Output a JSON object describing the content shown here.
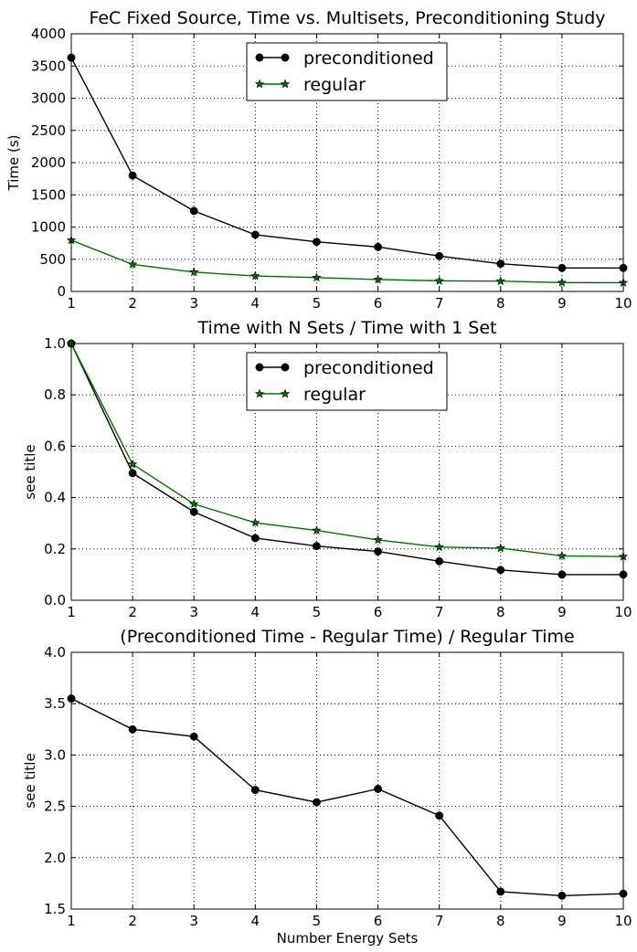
{
  "chart_data": [
    {
      "type": "line",
      "title": "FeC Fixed Source, Time vs. Multisets, Preconditioning Study",
      "xlabel": "",
      "ylabel": "Time (s)",
      "xlim": [
        1,
        10
      ],
      "ylim": [
        0,
        4000
      ],
      "x_ticks": [
        1,
        2,
        3,
        4,
        5,
        6,
        7,
        8,
        9,
        10
      ],
      "y_ticks": [
        "0",
        "500",
        "1000",
        "1500",
        "2000",
        "2500",
        "3000",
        "3500",
        "4000"
      ],
      "y_tick_values": [
        0,
        500,
        1000,
        1500,
        2000,
        2500,
        3000,
        3500,
        4000
      ],
      "grid": true,
      "legend": {
        "placement": "top-center"
      },
      "x": [
        1,
        2,
        3,
        4,
        5,
        6,
        7,
        8,
        9,
        10
      ],
      "series": [
        {
          "name": "preconditioned",
          "color": "#000000",
          "marker": "circle",
          "values": [
            3630,
            1800,
            1250,
            880,
            770,
            690,
            550,
            430,
            365,
            365
          ]
        },
        {
          "name": "regular",
          "color": "#007000",
          "marker": "star",
          "values": [
            795,
            420,
            300,
            240,
            215,
            185,
            165,
            160,
            137,
            135
          ]
        }
      ]
    },
    {
      "type": "line",
      "title": "Time with N Sets / Time with 1 Set",
      "xlabel": "",
      "ylabel": "see title",
      "xlim": [
        1,
        10
      ],
      "ylim": [
        0,
        1
      ],
      "x_ticks": [
        1,
        2,
        3,
        4,
        5,
        6,
        7,
        8,
        9,
        10
      ],
      "y_ticks": [
        "0.0",
        "0.2",
        "0.4",
        "0.6",
        "0.8",
        "1.0"
      ],
      "y_tick_values": [
        0,
        0.2,
        0.4,
        0.6,
        0.8,
        1.0
      ],
      "grid": true,
      "legend": {
        "placement": "top-center"
      },
      "x": [
        1,
        2,
        3,
        4,
        5,
        6,
        7,
        8,
        9,
        10
      ],
      "series": [
        {
          "name": "preconditioned",
          "color": "#000000",
          "marker": "circle",
          "values": [
            1.0,
            0.495,
            0.344,
            0.242,
            0.211,
            0.19,
            0.152,
            0.118,
            0.1,
            0.1
          ]
        },
        {
          "name": "regular",
          "color": "#007000",
          "marker": "star",
          "values": [
            1.0,
            0.53,
            0.375,
            0.302,
            0.272,
            0.235,
            0.207,
            0.203,
            0.173,
            0.17
          ]
        }
      ]
    },
    {
      "type": "line",
      "title": "(Preconditioned Time - Regular Time) / Regular Time",
      "xlabel": "Number Energy Sets",
      "ylabel": "see title",
      "xlim": [
        1,
        10
      ],
      "ylim": [
        1.5,
        4.0
      ],
      "x_ticks": [
        1,
        2,
        3,
        4,
        5,
        6,
        7,
        8,
        9,
        10
      ],
      "y_ticks": [
        "1.5",
        "2.0",
        "2.5",
        "3.0",
        "3.5",
        "4.0"
      ],
      "y_tick_values": [
        1.5,
        2.0,
        2.5,
        3.0,
        3.5,
        4.0
      ],
      "grid": true,
      "x": [
        1,
        2,
        3,
        4,
        5,
        6,
        7,
        8,
        9,
        10
      ],
      "series": [
        {
          "color": "#000000",
          "marker": "circle",
          "values": [
            3.55,
            3.25,
            3.18,
            2.66,
            2.54,
            2.67,
            2.41,
            1.67,
            1.63,
            1.65
          ]
        }
      ]
    }
  ]
}
